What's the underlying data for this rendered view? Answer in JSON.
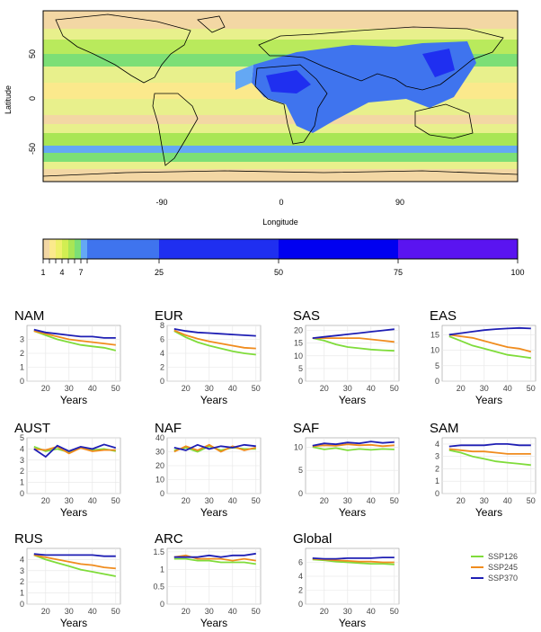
{
  "map": {
    "xlabel": "Longitude",
    "ylabel": "Latitude",
    "xticks": [
      "-90",
      "0",
      "90"
    ],
    "yticks": [
      "50",
      "0",
      "-50"
    ]
  },
  "colorbar": {
    "ticks": [
      "1",
      "4",
      "7",
      "25",
      "50",
      "75",
      "100"
    ],
    "bins": [
      1,
      2,
      3,
      4,
      5,
      6,
      7,
      8,
      25,
      50,
      75,
      100
    ],
    "colors": [
      "#f3d7a4",
      "#fbe98c",
      "#eef06a",
      "#d2ee52",
      "#a9e655",
      "#7cdf76",
      "#64a8f4",
      "#3f74ee",
      "#1f2ff0",
      "#0000f0",
      "#5a14f0"
    ]
  },
  "legend": {
    "entries": [
      {
        "label": "SSP126",
        "color": "#7fdc3a"
      },
      {
        "label": "SSP245",
        "color": "#f08c1e"
      },
      {
        "label": "SSP370",
        "color": "#1f1fb4"
      }
    ]
  },
  "chart_data": [
    {
      "type": "line",
      "title": "NAM",
      "xlabel": "Years",
      "x": [
        15,
        20,
        25,
        30,
        35,
        40,
        45,
        50
      ],
      "xlim": [
        12,
        52
      ],
      "ylim": [
        0,
        4
      ],
      "yticks": [
        0,
        1,
        2,
        3
      ],
      "xticks": [
        20,
        30,
        40,
        50
      ],
      "series": [
        {
          "name": "SSP126",
          "values": [
            3.6,
            3.3,
            3.0,
            2.8,
            2.6,
            2.5,
            2.4,
            2.2
          ]
        },
        {
          "name": "SSP245",
          "values": [
            3.6,
            3.4,
            3.2,
            3.0,
            2.9,
            2.8,
            2.7,
            2.6
          ]
        },
        {
          "name": "SSP370",
          "values": [
            3.7,
            3.5,
            3.4,
            3.3,
            3.2,
            3.2,
            3.1,
            3.1
          ]
        }
      ]
    },
    {
      "type": "line",
      "title": "EUR",
      "xlabel": "Years",
      "x": [
        15,
        20,
        25,
        30,
        35,
        40,
        45,
        50
      ],
      "xlim": [
        12,
        52
      ],
      "ylim": [
        0,
        8
      ],
      "yticks": [
        0,
        2,
        4,
        6,
        8
      ],
      "xticks": [
        20,
        30,
        40,
        50
      ],
      "series": [
        {
          "name": "SSP126",
          "values": [
            7.2,
            6.3,
            5.6,
            5.1,
            4.7,
            4.3,
            4.0,
            3.8
          ]
        },
        {
          "name": "SSP245",
          "values": [
            7.3,
            6.6,
            6.1,
            5.7,
            5.4,
            5.1,
            4.8,
            4.7
          ]
        },
        {
          "name": "SSP370",
          "values": [
            7.5,
            7.2,
            7.0,
            6.9,
            6.8,
            6.7,
            6.6,
            6.5
          ]
        }
      ]
    },
    {
      "type": "line",
      "title": "SAS",
      "xlabel": "Years",
      "x": [
        15,
        20,
        25,
        30,
        35,
        40,
        45,
        50
      ],
      "xlim": [
        12,
        52
      ],
      "ylim": [
        0,
        22
      ],
      "yticks": [
        0,
        5,
        10,
        15,
        20
      ],
      "xticks": [
        20,
        30,
        40,
        50
      ],
      "series": [
        {
          "name": "SSP126",
          "values": [
            17,
            16,
            14.5,
            13.5,
            13,
            12.5,
            12.2,
            12
          ]
        },
        {
          "name": "SSP245",
          "values": [
            17,
            17,
            17,
            17,
            17,
            16.5,
            16,
            15.5
          ]
        },
        {
          "name": "SSP370",
          "values": [
            17,
            17.5,
            18,
            18.5,
            19,
            19.5,
            20,
            20.5
          ]
        }
      ]
    },
    {
      "type": "line",
      "title": "EAS",
      "xlabel": "Years",
      "x": [
        15,
        20,
        25,
        30,
        35,
        40,
        45,
        50
      ],
      "xlim": [
        12,
        52
      ],
      "ylim": [
        0,
        18
      ],
      "yticks": [
        0,
        5,
        10,
        15
      ],
      "xticks": [
        20,
        30,
        40,
        50
      ],
      "series": [
        {
          "name": "SSP126",
          "values": [
            14.5,
            13,
            11.5,
            10.5,
            9.5,
            8.5,
            8,
            7.5
          ]
        },
        {
          "name": "SSP245",
          "values": [
            15,
            14.5,
            14,
            13,
            12,
            11,
            10.5,
            9.5
          ]
        },
        {
          "name": "SSP370",
          "values": [
            15,
            15.5,
            16,
            16.5,
            16.8,
            17,
            17.2,
            17
          ]
        }
      ]
    },
    {
      "type": "line",
      "title": "AUST",
      "xlabel": "Years",
      "x": [
        15,
        20,
        25,
        30,
        35,
        40,
        45,
        50
      ],
      "xlim": [
        12,
        52
      ],
      "ylim": [
        0,
        5
      ],
      "yticks": [
        0,
        1,
        2,
        3,
        4,
        5
      ],
      "xticks": [
        20,
        30,
        40,
        50
      ],
      "series": [
        {
          "name": "SSP126",
          "values": [
            4.2,
            3.8,
            4.0,
            3.7,
            4.1,
            3.9,
            4.0,
            3.8
          ]
        },
        {
          "name": "SSP245",
          "values": [
            4.0,
            3.9,
            4.2,
            3.6,
            4.1,
            3.8,
            3.9,
            3.9
          ]
        },
        {
          "name": "SSP370",
          "values": [
            4.0,
            3.3,
            4.3,
            3.8,
            4.2,
            4.0,
            4.4,
            4.1
          ]
        }
      ]
    },
    {
      "type": "line",
      "title": "NAF",
      "xlabel": "Years",
      "x": [
        15,
        20,
        25,
        30,
        35,
        40,
        45,
        50
      ],
      "xlim": [
        12,
        52
      ],
      "ylim": [
        0,
        40
      ],
      "yticks": [
        0,
        10,
        20,
        30,
        40
      ],
      "xticks": [
        20,
        30,
        40,
        50
      ],
      "series": [
        {
          "name": "SSP126",
          "values": [
            31,
            33,
            30,
            34,
            31,
            33,
            32,
            32
          ]
        },
        {
          "name": "SSP245",
          "values": [
            30,
            34,
            31,
            35,
            30,
            34,
            31,
            33
          ]
        },
        {
          "name": "SSP370",
          "values": [
            33,
            31,
            35,
            32,
            34,
            33,
            35,
            34
          ]
        }
      ]
    },
    {
      "type": "line",
      "title": "SAF",
      "xlabel": "Years",
      "x": [
        15,
        20,
        25,
        30,
        35,
        40,
        45,
        50
      ],
      "xlim": [
        12,
        52
      ],
      "ylim": [
        0,
        12
      ],
      "yticks": [
        0,
        5,
        10
      ],
      "xticks": [
        20,
        30,
        40,
        50
      ],
      "series": [
        {
          "name": "SSP126",
          "values": [
            10,
            9.5,
            9.8,
            9.3,
            9.6,
            9.4,
            9.6,
            9.5
          ]
        },
        {
          "name": "SSP245",
          "values": [
            10.2,
            10.4,
            10.3,
            10.6,
            10.4,
            10.5,
            10.2,
            10.4
          ]
        },
        {
          "name": "SSP370",
          "values": [
            10.3,
            10.8,
            10.6,
            11.0,
            10.8,
            11.2,
            10.9,
            11.1
          ]
        }
      ]
    },
    {
      "type": "line",
      "title": "SAM",
      "xlabel": "Years",
      "x": [
        15,
        20,
        25,
        30,
        35,
        40,
        45,
        50
      ],
      "xlim": [
        12,
        52
      ],
      "ylim": [
        0,
        4.5
      ],
      "yticks": [
        0,
        1,
        2,
        3,
        4
      ],
      "xticks": [
        20,
        30,
        40,
        50
      ],
      "series": [
        {
          "name": "SSP126",
          "values": [
            3.5,
            3.3,
            3.0,
            2.8,
            2.6,
            2.5,
            2.4,
            2.3
          ]
        },
        {
          "name": "SSP245",
          "values": [
            3.6,
            3.5,
            3.4,
            3.4,
            3.3,
            3.2,
            3.2,
            3.2
          ]
        },
        {
          "name": "SSP370",
          "values": [
            3.8,
            3.9,
            3.9,
            3.9,
            4.0,
            4.0,
            3.9,
            3.9
          ]
        }
      ]
    },
    {
      "type": "line",
      "title": "RUS",
      "xlabel": "Years",
      "x": [
        15,
        20,
        25,
        30,
        35,
        40,
        45,
        50
      ],
      "xlim": [
        12,
        52
      ],
      "ylim": [
        0,
        5
      ],
      "yticks": [
        0,
        1,
        2,
        3,
        4
      ],
      "xticks": [
        20,
        30,
        40,
        50
      ],
      "series": [
        {
          "name": "SSP126",
          "values": [
            4.4,
            4.0,
            3.7,
            3.4,
            3.1,
            2.9,
            2.7,
            2.5
          ]
        },
        {
          "name": "SSP245",
          "values": [
            4.4,
            4.2,
            4.0,
            3.8,
            3.6,
            3.5,
            3.3,
            3.2
          ]
        },
        {
          "name": "SSP370",
          "values": [
            4.5,
            4.4,
            4.4,
            4.4,
            4.4,
            4.4,
            4.3,
            4.3
          ]
        }
      ]
    },
    {
      "type": "line",
      "title": "ARC",
      "xlabel": "Years",
      "x": [
        15,
        20,
        25,
        30,
        35,
        40,
        45,
        50
      ],
      "xlim": [
        12,
        52
      ],
      "ylim": [
        0,
        1.6
      ],
      "yticks": [
        0.0,
        0.5,
        1.0,
        1.5
      ],
      "xticks": [
        20,
        30,
        40,
        50
      ],
      "series": [
        {
          "name": "SSP126",
          "values": [
            1.3,
            1.3,
            1.25,
            1.25,
            1.2,
            1.2,
            1.2,
            1.15
          ]
        },
        {
          "name": "SSP245",
          "values": [
            1.35,
            1.4,
            1.3,
            1.3,
            1.3,
            1.25,
            1.3,
            1.25
          ]
        },
        {
          "name": "SSP370",
          "values": [
            1.35,
            1.35,
            1.35,
            1.4,
            1.35,
            1.4,
            1.4,
            1.45
          ]
        }
      ]
    },
    {
      "type": "line",
      "title": "Global",
      "xlabel": "Years",
      "x": [
        15,
        20,
        25,
        30,
        35,
        40,
        45,
        50
      ],
      "xlim": [
        12,
        52
      ],
      "ylim": [
        0,
        8
      ],
      "yticks": [
        0,
        2,
        4,
        6
      ],
      "xticks": [
        20,
        30,
        40,
        50
      ],
      "series": [
        {
          "name": "SSP126",
          "values": [
            6.4,
            6.3,
            6.1,
            6.0,
            5.9,
            5.8,
            5.8,
            5.7
          ]
        },
        {
          "name": "SSP245",
          "values": [
            6.5,
            6.4,
            6.3,
            6.2,
            6.1,
            6.1,
            6.0,
            6.0
          ]
        },
        {
          "name": "SSP370",
          "values": [
            6.6,
            6.5,
            6.5,
            6.6,
            6.6,
            6.6,
            6.7,
            6.7
          ]
        }
      ]
    }
  ]
}
